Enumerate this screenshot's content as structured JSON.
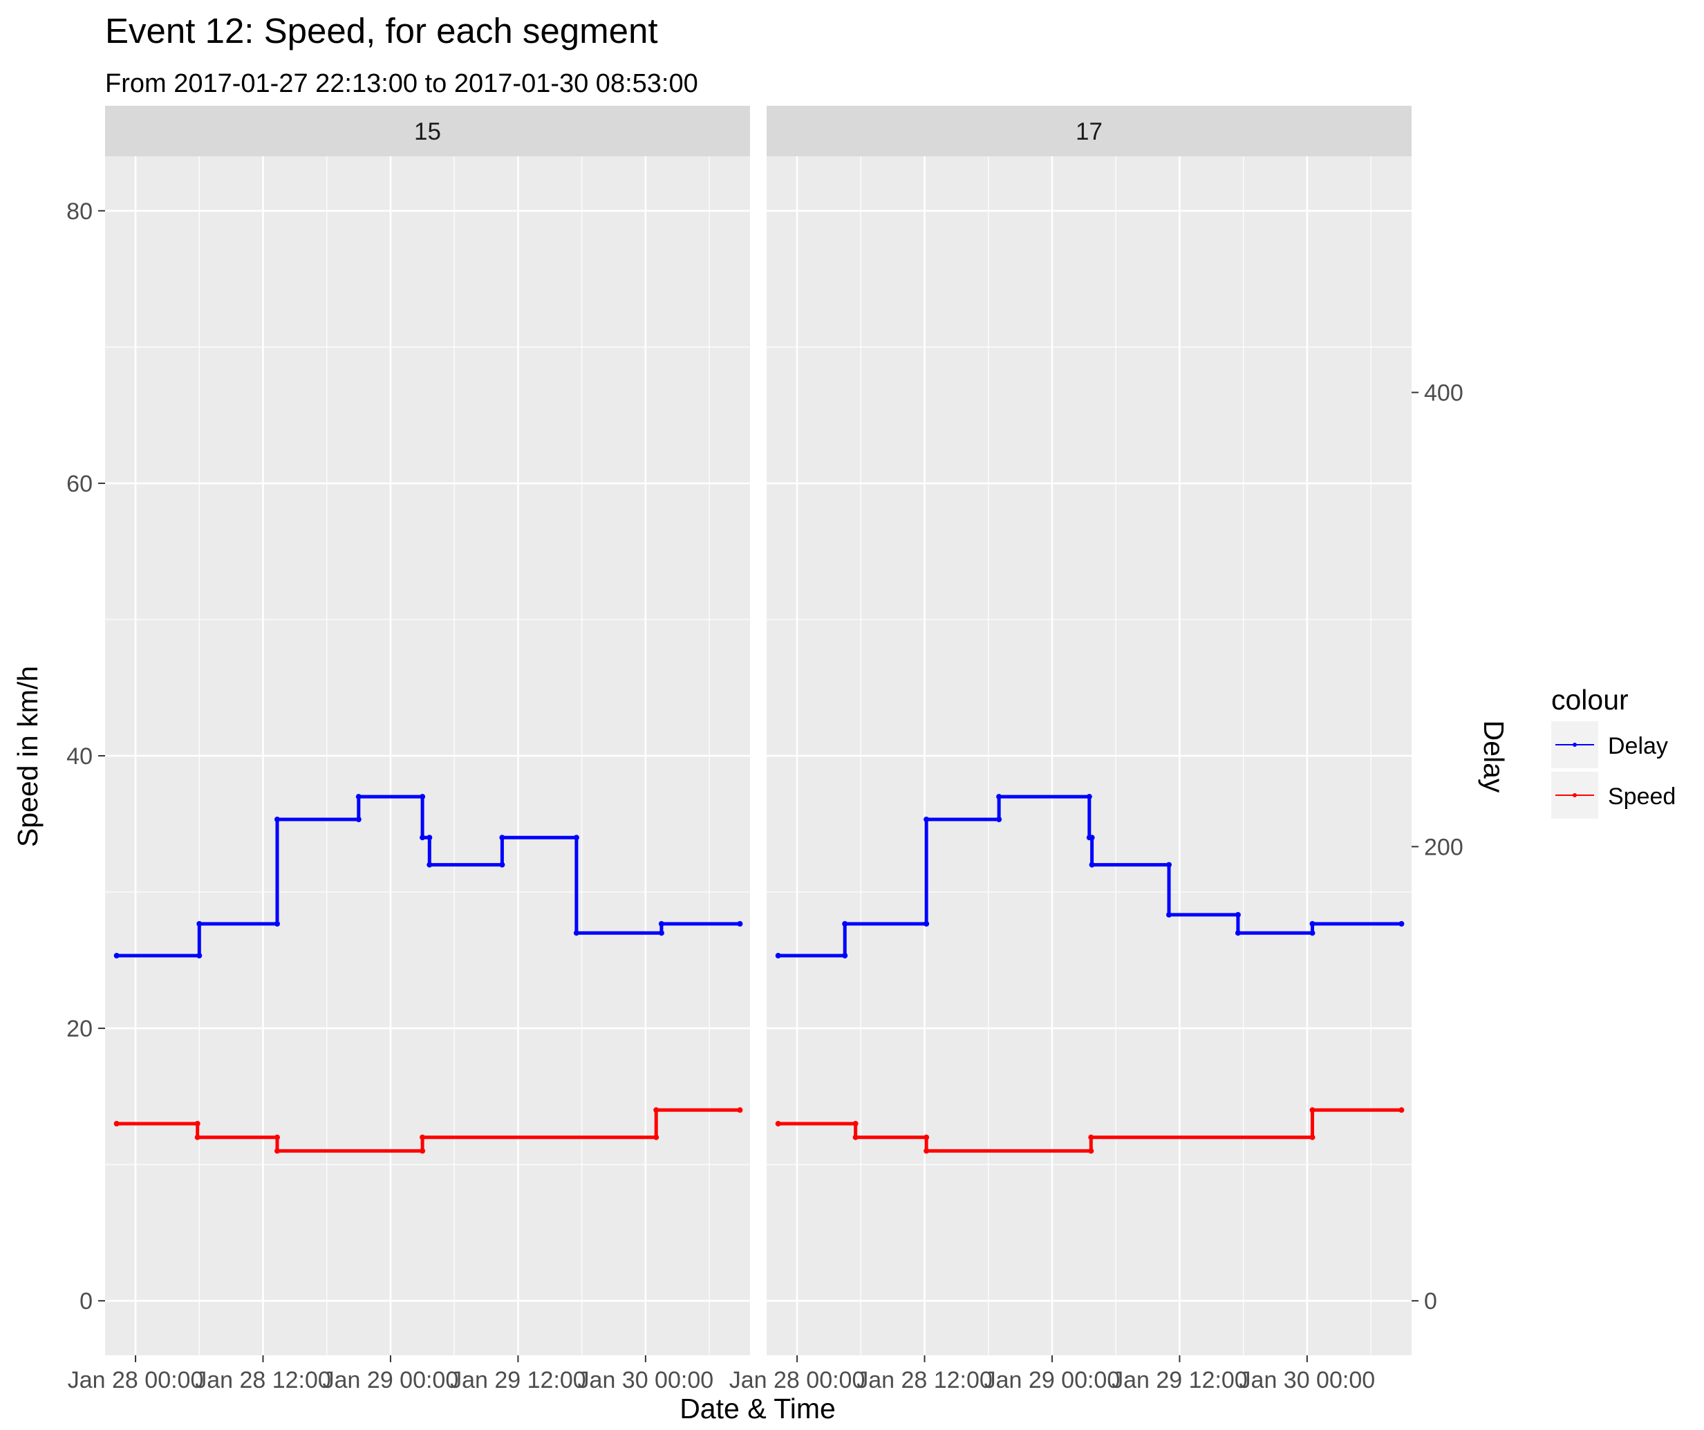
{
  "chart_data": {
    "type": "line",
    "title": "Event 12: Speed, for each segment",
    "subtitle": "From 2017-01-27 22:13:00 to 2017-01-30 08:53:00",
    "xlabel": "Date & Time",
    "ylabel": "Speed in km/h",
    "y2label": "Delay",
    "ylim": [
      -4,
      84
    ],
    "y2lim": [
      -24,
      504
    ],
    "yticks": [
      0,
      20,
      40,
      60,
      80
    ],
    "y2ticks": [
      0,
      200,
      400
    ],
    "xlim": [
      "2017-01-27 21:08",
      "2017-01-30 09:50"
    ],
    "xticks": [
      "2017-01-28 00:00",
      "2017-01-28 12:00",
      "2017-01-29 00:00",
      "2017-01-29 12:00",
      "2017-01-30 00:00"
    ],
    "xticklabels": [
      "Jan 28 00:00",
      "Jan 28 12:00",
      "Jan 29 00:00",
      "Jan 29 12:00",
      "Jan 30 00:00"
    ],
    "legend": {
      "title": "colour",
      "position": "right",
      "entries": [
        {
          "name": "Delay",
          "color": "#0000ff"
        },
        {
          "name": "Speed",
          "color": "#ff0000"
        }
      ]
    },
    "grid": true,
    "panels": [
      {
        "label": "15",
        "series": [
          {
            "name": "Delay",
            "color": "#0000ff",
            "axis": "y2",
            "step": true,
            "points": [
              [
                "2017-01-27 22:13",
                152
              ],
              [
                "2017-01-28 06:00",
                152
              ],
              [
                "2017-01-28 06:00",
                166
              ],
              [
                "2017-01-28 13:20",
                166
              ],
              [
                "2017-01-28 13:20",
                212
              ],
              [
                "2017-01-28 21:00",
                212
              ],
              [
                "2017-01-28 21:00",
                222
              ],
              [
                "2017-01-29 03:00",
                222
              ],
              [
                "2017-01-29 03:00",
                204
              ],
              [
                "2017-01-29 03:40",
                204
              ],
              [
                "2017-01-29 03:40",
                192
              ],
              [
                "2017-01-29 10:30",
                192
              ],
              [
                "2017-01-29 10:30",
                204
              ],
              [
                "2017-01-29 17:30",
                204
              ],
              [
                "2017-01-29 17:30",
                162
              ],
              [
                "2017-01-30 01:30",
                162
              ],
              [
                "2017-01-30 01:30",
                166
              ],
              [
                "2017-01-30 08:53",
                166
              ]
            ]
          },
          {
            "name": "Speed",
            "color": "#ff0000",
            "axis": "y",
            "step": true,
            "points": [
              [
                "2017-01-27 22:13",
                13
              ],
              [
                "2017-01-28 05:50",
                13
              ],
              [
                "2017-01-28 05:50",
                12
              ],
              [
                "2017-01-28 13:20",
                12
              ],
              [
                "2017-01-28 13:20",
                11
              ],
              [
                "2017-01-29 03:00",
                11
              ],
              [
                "2017-01-29 03:00",
                12
              ],
              [
                "2017-01-30 01:00",
                12
              ],
              [
                "2017-01-30 01:00",
                14
              ],
              [
                "2017-01-30 08:53",
                14
              ]
            ]
          }
        ]
      },
      {
        "label": "17",
        "series": [
          {
            "name": "Delay",
            "color": "#0000ff",
            "axis": "y2",
            "step": true,
            "points": [
              [
                "2017-01-27 22:13",
                152
              ],
              [
                "2017-01-28 04:30",
                152
              ],
              [
                "2017-01-28 04:30",
                166
              ],
              [
                "2017-01-28 12:10",
                166
              ],
              [
                "2017-01-28 12:10",
                212
              ],
              [
                "2017-01-28 19:00",
                212
              ],
              [
                "2017-01-28 19:00",
                222
              ],
              [
                "2017-01-29 03:30",
                222
              ],
              [
                "2017-01-29 03:30",
                204
              ],
              [
                "2017-01-29 03:45",
                204
              ],
              [
                "2017-01-29 03:45",
                192
              ],
              [
                "2017-01-29 11:00",
                192
              ],
              [
                "2017-01-29 11:00",
                170
              ],
              [
                "2017-01-29 17:30",
                170
              ],
              [
                "2017-01-29 17:30",
                162
              ],
              [
                "2017-01-30 00:30",
                162
              ],
              [
                "2017-01-30 00:30",
                166
              ],
              [
                "2017-01-30 08:53",
                166
              ]
            ]
          },
          {
            "name": "Speed",
            "color": "#ff0000",
            "axis": "y",
            "step": true,
            "points": [
              [
                "2017-01-27 22:13",
                13
              ],
              [
                "2017-01-28 05:30",
                13
              ],
              [
                "2017-01-28 05:30",
                12
              ],
              [
                "2017-01-28 12:10",
                12
              ],
              [
                "2017-01-28 12:10",
                11
              ],
              [
                "2017-01-29 03:40",
                11
              ],
              [
                "2017-01-29 03:40",
                12
              ],
              [
                "2017-01-30 00:30",
                12
              ],
              [
                "2017-01-30 00:30",
                14
              ],
              [
                "2017-01-30 08:53",
                14
              ]
            ]
          }
        ]
      }
    ]
  }
}
